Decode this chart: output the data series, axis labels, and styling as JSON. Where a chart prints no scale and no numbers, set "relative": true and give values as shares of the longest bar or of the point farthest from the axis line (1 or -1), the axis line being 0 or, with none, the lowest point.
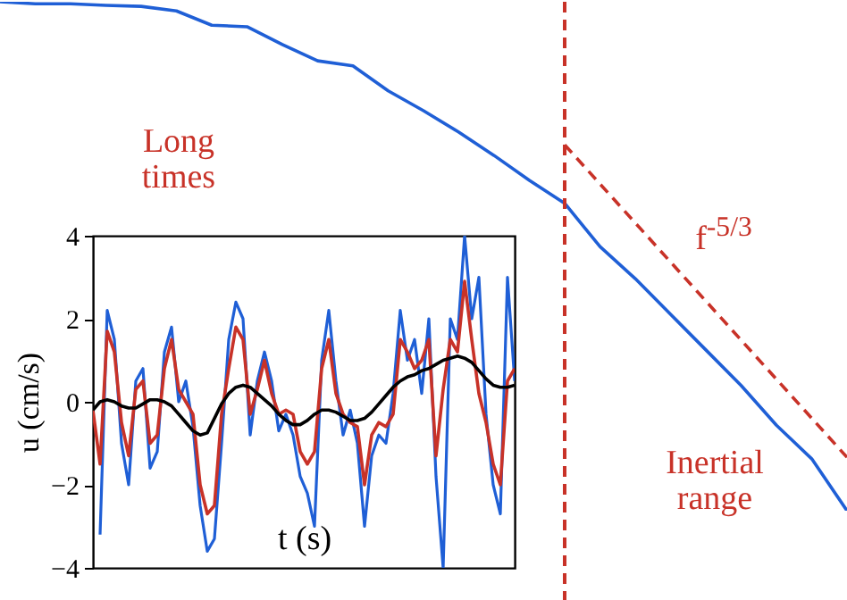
{
  "chart_data": [
    {
      "type": "line",
      "relative": true,
      "categories": [
        null,
        null,
        null,
        null,
        null,
        null,
        null,
        null,
        null,
        null,
        null,
        null,
        null,
        null,
        null,
        null,
        null,
        null,
        null,
        null,
        null,
        null,
        null,
        null,
        null
      ],
      "annotations": [
        "Long times",
        "f$^{-5/3}$",
        "Inertial range"
      ],
      "series": [
        {
          "color": "#1f5fd6",
          "values": [
            1,
            0.996,
            0.996,
            0.993,
            0.991,
            0.982,
            0.954,
            0.951,
            0.916,
            0.884,
            0.874,
            0.825,
            0.786,
            0.744,
            0.698,
            0.649,
            0.604,
            0.519,
            0.456,
            0.386,
            0.316,
            0.246,
            0.168,
            0.102,
            0
          ]
        },
        {
          "color": "#c83228",
          "line_style": "dashed",
          "values": [
            null,
            null,
            null,
            null,
            null,
            null,
            null,
            null,
            null,
            null,
            null,
            null,
            null,
            null,
            null,
            null,
            0.719,
            null,
            null,
            null,
            null,
            null,
            null,
            null,
            0.105
          ]
        }
      ]
    },
    {
      "type": "line",
      "xlabel": "t (s)",
      "ylabel": "u (cm/s)",
      "ylim": [
        -4,
        4
      ],
      "yticks": [
        -4,
        -2,
        0,
        2,
        4
      ],
      "tick_labels": "y",
      "categories": [
        null,
        null,
        null,
        null,
        null,
        null,
        null,
        null,
        null,
        null,
        null,
        null,
        null,
        null,
        null,
        null,
        null,
        null,
        null,
        null,
        null,
        null,
        null,
        null,
        null,
        null,
        null,
        null,
        null,
        null,
        null,
        null,
        null,
        null,
        null,
        null,
        null,
        null,
        null,
        null,
        null,
        null,
        null,
        null,
        null,
        null,
        null,
        null,
        null,
        null,
        null,
        null,
        null,
        null,
        null,
        null,
        null,
        null,
        null,
        null
      ],
      "series": [
        {
          "color": "#1f5fd6",
          "values": [
            null,
            -3.2,
            2.2,
            1.5,
            -1.0,
            -2.0,
            0.5,
            0.8,
            -1.6,
            -1.2,
            1.2,
            1.8,
            0,
            0.5,
            -0.6,
            -2.5,
            -3.6,
            -3.3,
            -1.0,
            1.5,
            2.4,
            2.0,
            -0.8,
            0.5,
            1.2,
            0.5,
            -0.7,
            -0.3,
            -0.8,
            -1.8,
            -2.2,
            -3.0,
            1.0,
            2.2,
            0.5,
            -0.8,
            -0.2,
            -1.0,
            -3.0,
            -1.3,
            -0.8,
            -1.0,
            0.2,
            2.2,
            1.0,
            1.5,
            0.2,
            2.0,
            -1.8,
            -4.0,
            2.0,
            1.5,
            4.0,
            2.0,
            3.0,
            -0.3,
            -2.0,
            -2.7,
            3.0,
            0.5
          ]
        },
        {
          "color": "#c83228",
          "values": [
            -0.2,
            -1.5,
            1.7,
            1.2,
            -0.5,
            -1.3,
            0.3,
            0.5,
            -1.0,
            -0.8,
            0.8,
            1.5,
            0.3,
            0,
            -0.3,
            -2.0,
            -2.7,
            -2.5,
            -0.3,
            0.8,
            1.8,
            1.5,
            -0.3,
            0.3,
            1.0,
            0.2,
            -0.3,
            -0.2,
            -0.3,
            -1.2,
            -1.5,
            -1.2,
            0.8,
            1.5,
            0.2,
            -0.3,
            -0.5,
            -0.6,
            -2.0,
            -0.8,
            -0.5,
            -0.6,
            -0.3,
            1.5,
            1.2,
            0.8,
            1.0,
            1.5,
            -1.3,
            0.3,
            1.5,
            1.2,
            2.9,
            1.5,
            0.2,
            -0.5,
            -1.5,
            -2.0,
            0.5,
            0.8
          ]
        },
        {
          "color": "#000000",
          "values": [
            -0.2,
            0,
            0.05,
            0,
            -0.1,
            -0.15,
            -0.15,
            -0.05,
            0.05,
            0.05,
            0,
            -0.1,
            -0.3,
            -0.5,
            -0.7,
            -0.8,
            -0.75,
            -0.4,
            -0.05,
            0.2,
            0.35,
            0.4,
            0.35,
            0.2,
            0.05,
            -0.1,
            -0.3,
            -0.45,
            -0.55,
            -0.55,
            -0.45,
            -0.3,
            -0.2,
            -0.2,
            -0.25,
            -0.35,
            -0.45,
            -0.45,
            -0.4,
            -0.25,
            -0.05,
            0.15,
            0.35,
            0.5,
            0.6,
            0.65,
            0.75,
            0.8,
            0.9,
            1.0,
            1.05,
            1.1,
            1.05,
            0.95,
            0.75,
            0.55,
            0.4,
            0.35,
            0.35,
            0.4
          ]
        }
      ]
    }
  ]
}
